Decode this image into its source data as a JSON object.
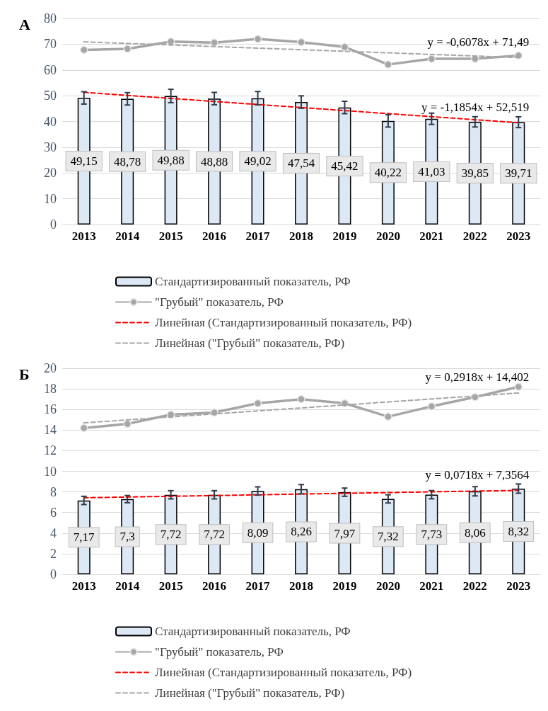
{
  "chart_data": [
    {
      "type": "bar",
      "title": "А",
      "categories": [
        "2013",
        "2014",
        "2015",
        "2016",
        "2017",
        "2018",
        "2019",
        "2020",
        "2021",
        "2022",
        "2023"
      ],
      "ylim": [
        0,
        80
      ],
      "yticks": [
        0,
        10,
        20,
        30,
        40,
        50,
        60,
        70,
        80
      ],
      "grid": "y",
      "legend": "bottom",
      "series": [
        {
          "name": "Стандартизированный показатель, РФ",
          "color": "#dde8f5",
          "values": [
            49.15,
            48.78,
            49.88,
            48.88,
            49.02,
            47.54,
            45.42,
            40.22,
            41.03,
            39.85,
            39.71
          ],
          "errors": [
            2.4,
            2.4,
            2.6,
            2.4,
            2.6,
            2.4,
            2.4,
            2.4,
            2.2,
            2.0,
            2.1
          ],
          "value_labels": [
            "49,15",
            "48,78",
            "49,88",
            "48,88",
            "49,02",
            "47,54",
            "45,42",
            "40,22",
            "41,03",
            "39,85",
            "39,71"
          ]
        },
        {
          "name": "\"Грубый\" показатель, РФ",
          "type": "line",
          "color": "#a6a6a6",
          "marker": "circle",
          "line_style": "solid",
          "values": [
            67.8,
            68.2,
            71.0,
            70.6,
            72.0,
            70.8,
            68.9,
            62.1,
            64.3,
            64.3,
            65.6
          ]
        },
        {
          "name": "Линейная (Стандартизированный показатель, РФ)",
          "type": "line",
          "color": "#ff0000",
          "marker": "none",
          "line_style": "dashed",
          "values": [
            51.3,
            null,
            null,
            null,
            null,
            null,
            null,
            null,
            null,
            null,
            39.5
          ]
        },
        {
          "name": "Линейная (\"Грубый\" показатель, РФ)",
          "type": "line",
          "color": "#a6a6a6",
          "marker": "none",
          "line_style": "dashed",
          "values": [
            70.9,
            null,
            null,
            null,
            null,
            null,
            null,
            null,
            null,
            null,
            64.8
          ]
        }
      ],
      "annotations": [
        {
          "text": "y = -0,6078x + 71,49",
          "x": "2023",
          "y": 64.8
        },
        {
          "text": "y = -1,1854x + 52,519",
          "x": "2023",
          "y": 39.5
        }
      ]
    },
    {
      "type": "bar",
      "title": "Б",
      "categories": [
        "2013",
        "2014",
        "2015",
        "2016",
        "2017",
        "2018",
        "2019",
        "2020",
        "2021",
        "2022",
        "2023"
      ],
      "ylim": [
        0,
        20
      ],
      "yticks": [
        0,
        2,
        4,
        6,
        8,
        10,
        12,
        14,
        16,
        18,
        20
      ],
      "grid": "y",
      "legend": "bottom",
      "series": [
        {
          "name": "Стандартизированный показатель, РФ",
          "color": "#dde8f5",
          "values": [
            7.17,
            7.3,
            7.72,
            7.72,
            8.09,
            8.26,
            7.97,
            7.32,
            7.73,
            8.06,
            8.32
          ],
          "errors": [
            0.4,
            0.35,
            0.4,
            0.4,
            0.4,
            0.45,
            0.4,
            0.4,
            0.4,
            0.45,
            0.45
          ],
          "value_labels": [
            "7,17",
            "7,3",
            "7,72",
            "7,72",
            "8,09",
            "8,26",
            "7,97",
            "7,32",
            "7,73",
            "8,06",
            "8,32"
          ]
        },
        {
          "name": "\"Грубый\" показатель, РФ",
          "type": "line",
          "color": "#a6a6a6",
          "marker": "circle",
          "line_style": "solid",
          "values": [
            14.2,
            14.6,
            15.5,
            15.7,
            16.6,
            17.0,
            16.6,
            15.3,
            16.3,
            17.2,
            18.2
          ]
        },
        {
          "name": "Линейная (Стандартизированный показатель, РФ)",
          "type": "line",
          "color": "#ff0000",
          "marker": "none",
          "line_style": "dashed",
          "values": [
            7.43,
            null,
            null,
            null,
            null,
            null,
            null,
            null,
            null,
            null,
            8.15
          ]
        },
        {
          "name": "Линейная (\"Грубый\" показатель, РФ)",
          "type": "line",
          "color": "#a6a6a6",
          "marker": "none",
          "line_style": "dashed",
          "values": [
            14.7,
            null,
            null,
            null,
            null,
            null,
            null,
            null,
            null,
            null,
            17.6
          ]
        }
      ],
      "annotations": [
        {
          "text": "y = 0,2918x + 14,402",
          "x": "2023",
          "y": 17.6
        },
        {
          "text": "y = 0,0718x + 7,3564",
          "x": "2023",
          "y": 8.15
        }
      ]
    }
  ]
}
